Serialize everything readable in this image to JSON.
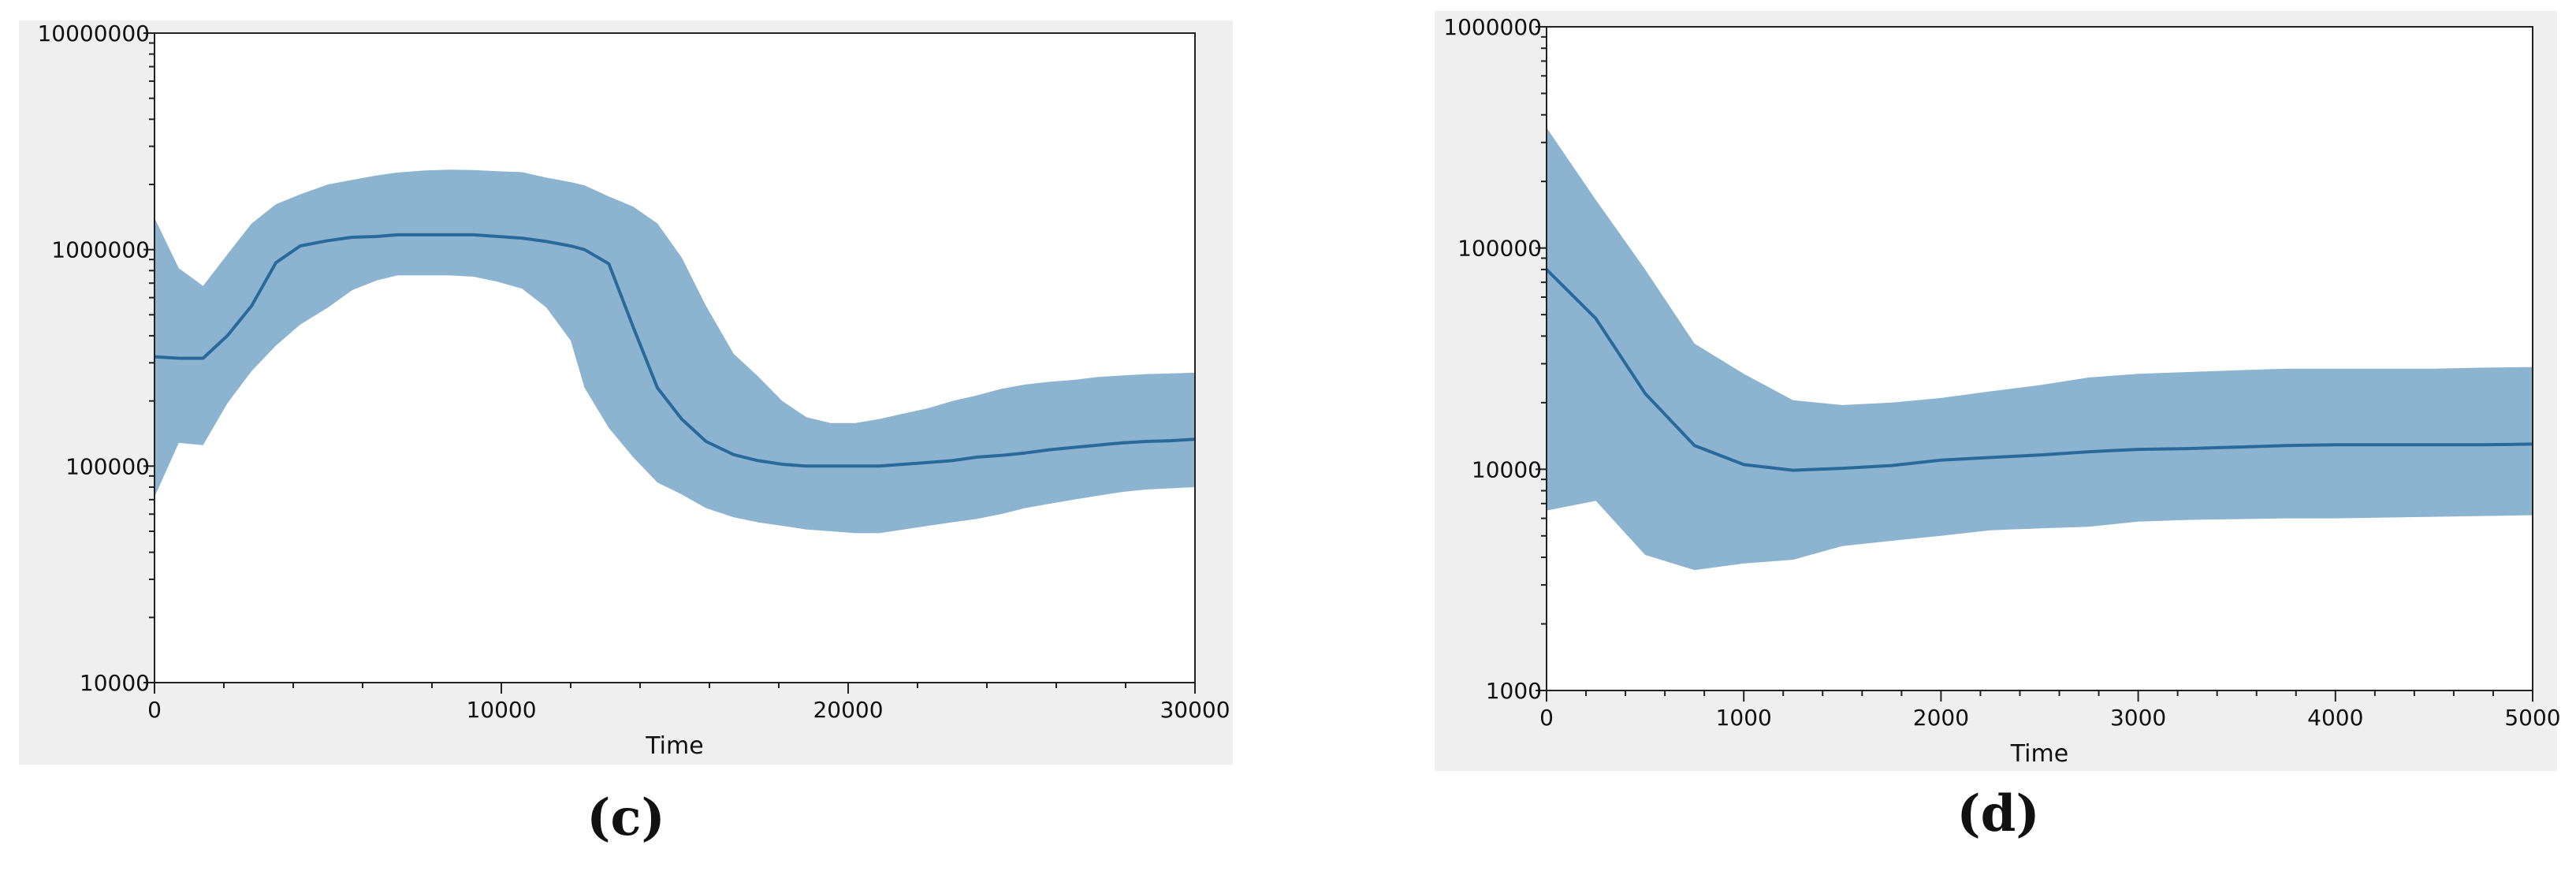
{
  "chart_data": [
    {
      "type": "area",
      "panel_label": "(c)",
      "xlabel": "Time",
      "ylabel": "",
      "xlim": [
        0,
        30000
      ],
      "ylim": [
        10000,
        10000000
      ],
      "y_scale": "log",
      "grid": false,
      "x_ticks": [
        "0",
        "10000",
        "20000",
        "30000"
      ],
      "y_ticks": [
        "10000",
        "100000",
        "1000000",
        "10000000"
      ],
      "colors": {
        "band": "#8cb4d0",
        "line": "#2a6a9a",
        "background": "#efefef"
      },
      "x": [
        0,
        700,
        1400,
        2100,
        2800,
        3500,
        4200,
        5000,
        5700,
        6400,
        7000,
        7800,
        8500,
        9200,
        9900,
        10600,
        11300,
        12000,
        12400,
        13100,
        13800,
        14500,
        15200,
        15900,
        16700,
        17400,
        18100,
        18800,
        19500,
        20200,
        20900,
        21600,
        22300,
        23000,
        23700,
        24400,
        25100,
        25800,
        26500,
        27200,
        27900,
        28600,
        29300,
        30000
      ],
      "median": [
        320000,
        315000,
        315000,
        400000,
        550000,
        870000,
        1040000,
        1100000,
        1140000,
        1150000,
        1170000,
        1170000,
        1170000,
        1170000,
        1150000,
        1130000,
        1090000,
        1040000,
        1000000,
        860000,
        440000,
        230000,
        165000,
        130000,
        113000,
        106000,
        102000,
        100000,
        100000,
        100000,
        100000,
        102000,
        104000,
        106000,
        110000,
        112000,
        115000,
        119000,
        122000,
        125000,
        128000,
        130000,
        131000,
        133000
      ],
      "upper": [
        1400000,
        820000,
        680000,
        950000,
        1320000,
        1620000,
        1800000,
        2000000,
        2100000,
        2200000,
        2270000,
        2320000,
        2340000,
        2330000,
        2300000,
        2280000,
        2150000,
        2050000,
        1980000,
        1760000,
        1580000,
        1320000,
        920000,
        550000,
        330000,
        260000,
        200000,
        168000,
        158000,
        158000,
        165000,
        175000,
        185000,
        200000,
        212000,
        227000,
        238000,
        245000,
        250000,
        258000,
        262000,
        266000,
        268000,
        270000
      ],
      "lower": [
        72000,
        128000,
        125000,
        195000,
        275000,
        360000,
        450000,
        540000,
        650000,
        720000,
        760000,
        760000,
        760000,
        750000,
        710000,
        660000,
        540000,
        380000,
        230000,
        150000,
        110000,
        84000,
        74000,
        64000,
        58000,
        55000,
        53000,
        51000,
        50000,
        49000,
        49000,
        51000,
        53000,
        55000,
        57000,
        60000,
        64000,
        67000,
        70000,
        73000,
        76000,
        78000,
        79000,
        80000
      ]
    },
    {
      "type": "area",
      "panel_label": "(d)",
      "xlabel": "Time",
      "ylabel": "",
      "xlim": [
        0,
        5000
      ],
      "ylim": [
        1000,
        1000000
      ],
      "y_scale": "log",
      "grid": false,
      "x_ticks": [
        "0",
        "1000",
        "2000",
        "3000",
        "4000",
        "5000"
      ],
      "y_ticks": [
        "1000",
        "10000",
        "100000",
        "1000000"
      ],
      "colors": {
        "band": "#8cb4d0",
        "line": "#2a6a9a",
        "background": "#efefef"
      },
      "x": [
        0,
        250,
        500,
        750,
        1000,
        1250,
        1500,
        1750,
        2000,
        2250,
        2500,
        2750,
        3000,
        3250,
        3500,
        3750,
        4000,
        4250,
        4500,
        4750,
        5000
      ],
      "median": [
        80000,
        48000,
        22000,
        12800,
        10500,
        9900,
        10100,
        10400,
        11000,
        11300,
        11600,
        12000,
        12300,
        12400,
        12600,
        12800,
        12900,
        12900,
        12900,
        12900,
        13000
      ],
      "upper": [
        350000,
        165000,
        80000,
        37000,
        27000,
        20500,
        19500,
        20000,
        21000,
        22500,
        24000,
        26000,
        27000,
        27500,
        28000,
        28500,
        28500,
        28500,
        28500,
        28800,
        29000
      ],
      "lower": [
        6500,
        7200,
        4100,
        3500,
        3750,
        3900,
        4500,
        4750,
        5000,
        5300,
        5400,
        5500,
        5800,
        5900,
        5950,
        6000,
        6000,
        6050,
        6100,
        6150,
        6200
      ]
    }
  ]
}
